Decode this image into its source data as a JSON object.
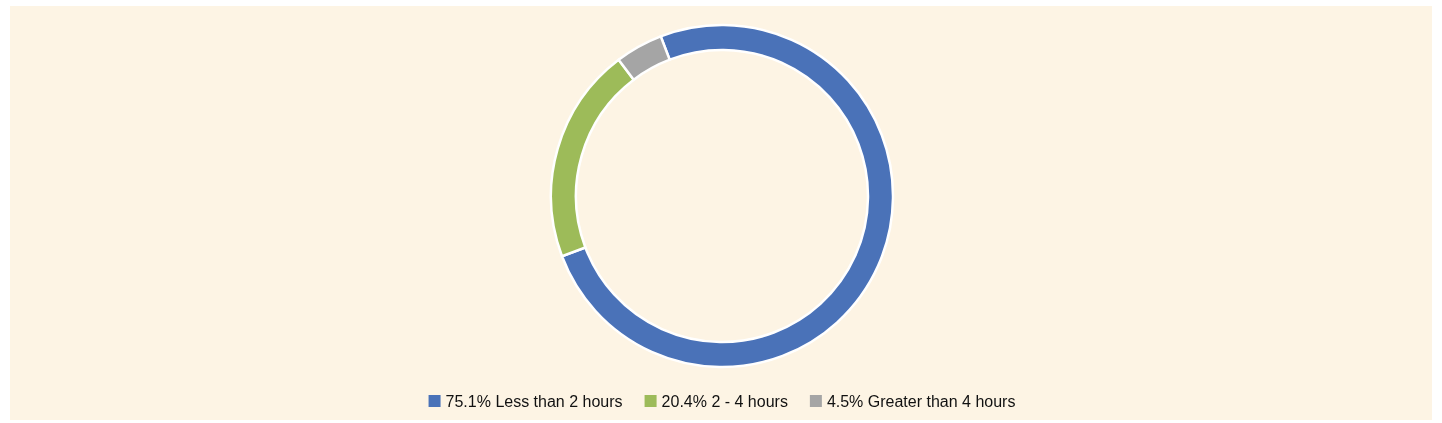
{
  "chart_data": {
    "type": "donut",
    "categories": [
      "Less than 2 hours",
      "2 - 4 hours",
      "Greater than 4 hours"
    ],
    "values": [
      75.1,
      20.4,
      4.5
    ],
    "colors": [
      "#4a72b8",
      "#9dbb59",
      "#a5a5a5"
    ],
    "value_labels": [
      "75.1%",
      "20.4%",
      "4.5%"
    ],
    "legend": "bottom"
  }
}
